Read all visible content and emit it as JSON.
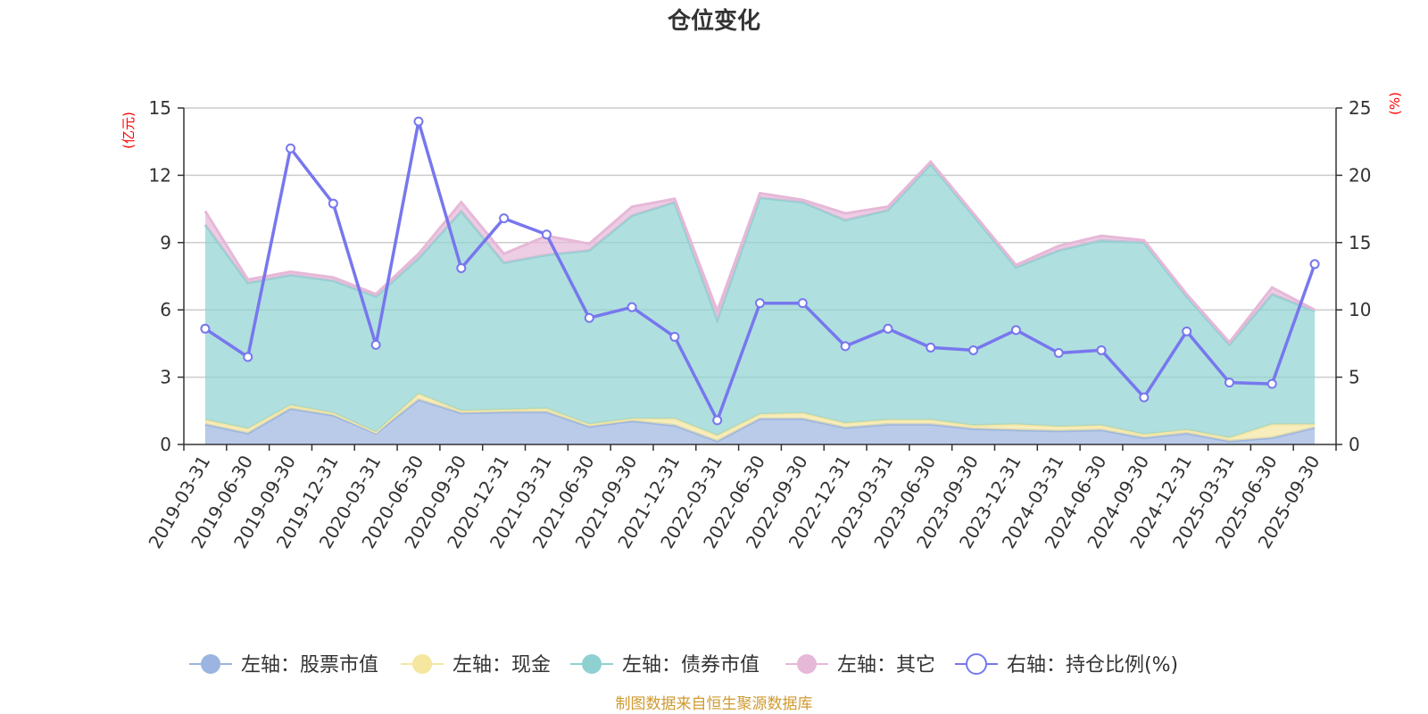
{
  "chart_data": {
    "type": "area",
    "title": "仓位变化",
    "left_axis_unit": "(亿元)",
    "right_axis_unit": "(%)",
    "left_ylim": [
      0,
      15
    ],
    "left_ticks": [
      0,
      3,
      6,
      9,
      12,
      15
    ],
    "right_ylim": [
      0,
      25
    ],
    "right_ticks": [
      0,
      5,
      10,
      15,
      20,
      25
    ],
    "categories": [
      "2019-03-31",
      "2019-06-30",
      "2019-09-30",
      "2019-12-31",
      "2020-03-31",
      "2020-06-30",
      "2020-09-30",
      "2020-12-31",
      "2021-03-31",
      "2021-06-30",
      "2021-09-30",
      "2021-12-31",
      "2022-03-31",
      "2022-06-30",
      "2022-09-30",
      "2022-12-31",
      "2023-03-31",
      "2023-06-30",
      "2023-09-30",
      "2023-12-31",
      "2024-03-31",
      "2024-06-30",
      "2024-09-30",
      "2024-12-31",
      "2025-03-31",
      "2025-06-30",
      "2025-09-30"
    ],
    "stacked_series": [
      {
        "name": "左轴：股票市值",
        "axis": "left",
        "color": "#9bb5e0",
        "values": [
          0.9,
          0.5,
          1.6,
          1.3,
          0.5,
          2.0,
          1.4,
          1.45,
          1.45,
          0.8,
          1.05,
          0.85,
          0.15,
          1.15,
          1.15,
          0.75,
          0.9,
          0.9,
          0.7,
          0.65,
          0.6,
          0.65,
          0.3,
          0.5,
          0.15,
          0.3,
          0.75
        ]
      },
      {
        "name": "左轴：现金",
        "axis": "left",
        "color": "#f5e6a0",
        "values": [
          0.2,
          0.2,
          0.15,
          0.1,
          0.05,
          0.25,
          0.1,
          0.1,
          0.15,
          0.1,
          0.1,
          0.3,
          0.25,
          0.2,
          0.25,
          0.2,
          0.2,
          0.2,
          0.15,
          0.25,
          0.2,
          0.2,
          0.15,
          0.15,
          0.15,
          0.6,
          0.15
        ]
      },
      {
        "name": "左轴：债券市值",
        "axis": "left",
        "color": "#8fd1d1",
        "values": [
          8.7,
          6.5,
          5.8,
          5.9,
          6.05,
          6.05,
          8.9,
          6.55,
          6.85,
          7.75,
          9.05,
          9.65,
          5.15,
          9.65,
          9.4,
          9.05,
          9.35,
          11.4,
          9.35,
          7.0,
          7.85,
          8.25,
          8.55,
          5.95,
          4.15,
          5.8,
          5.05
        ]
      },
      {
        "name": "左轴：其它",
        "axis": "left",
        "color": "#e6b8d8",
        "values": [
          0.6,
          0.15,
          0.15,
          0.15,
          0.1,
          0.2,
          0.4,
          0.4,
          0.85,
          0.3,
          0.4,
          0.15,
          0.4,
          0.2,
          0.1,
          0.3,
          0.15,
          0.1,
          0.1,
          0.1,
          0.2,
          0.2,
          0.1,
          0.1,
          0.1,
          0.3,
          0.05
        ]
      }
    ],
    "line_series": {
      "name": "右轴：持仓比例(%)",
      "axis": "right",
      "color": "#7777ee",
      "values": [
        8.6,
        6.5,
        22.0,
        17.9,
        7.4,
        24.0,
        13.1,
        16.8,
        15.6,
        9.4,
        10.2,
        8.0,
        1.8,
        10.5,
        10.5,
        7.3,
        8.6,
        7.2,
        7.0,
        8.5,
        6.8,
        7.0,
        3.5,
        8.4,
        4.6,
        4.5,
        13.4
      ]
    },
    "source_note": "制图数据来自恒生聚源数据库"
  }
}
